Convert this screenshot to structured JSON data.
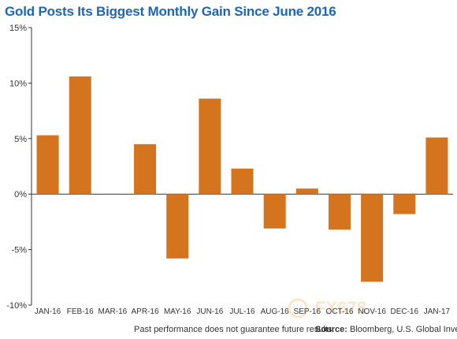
{
  "title": "Gold Posts Its Biggest Monthly Gain Since June 2016",
  "disclaimer": "Past performance does not guarantee future results.",
  "source_label": "Source:",
  "source_text": "Bloomberg, U.S. Global Investors",
  "watermark": "FX678",
  "colors": {
    "bar": "#d4741f",
    "title": "#1f66b0",
    "axis": "#333333",
    "text": "#333333"
  },
  "chart_data": {
    "type": "bar",
    "title": "Gold Posts Its Biggest Monthly Gain Since June 2016",
    "xlabel": "",
    "ylabel": "",
    "categories": [
      "JAN-16",
      "FEB-16",
      "MAR-16",
      "APR-16",
      "MAY-16",
      "JUN-16",
      "JUL-16",
      "AUG-16",
      "SEP-16",
      "OCT-16",
      "NOV-16",
      "DEC-16",
      "JAN-17"
    ],
    "values": [
      5.3,
      10.6,
      0,
      4.5,
      -5.8,
      8.6,
      2.3,
      -3.1,
      0.5,
      -3.2,
      -7.9,
      -1.8,
      5.1
    ],
    "ylim": [
      -10,
      15
    ],
    "yticks": [
      15,
      10,
      5,
      0,
      -5,
      -10
    ],
    "ytick_labels": [
      "15%",
      "10%",
      "5%",
      "0%",
      "-5%",
      "-10%"
    ],
    "grid": false,
    "legend": "none"
  }
}
